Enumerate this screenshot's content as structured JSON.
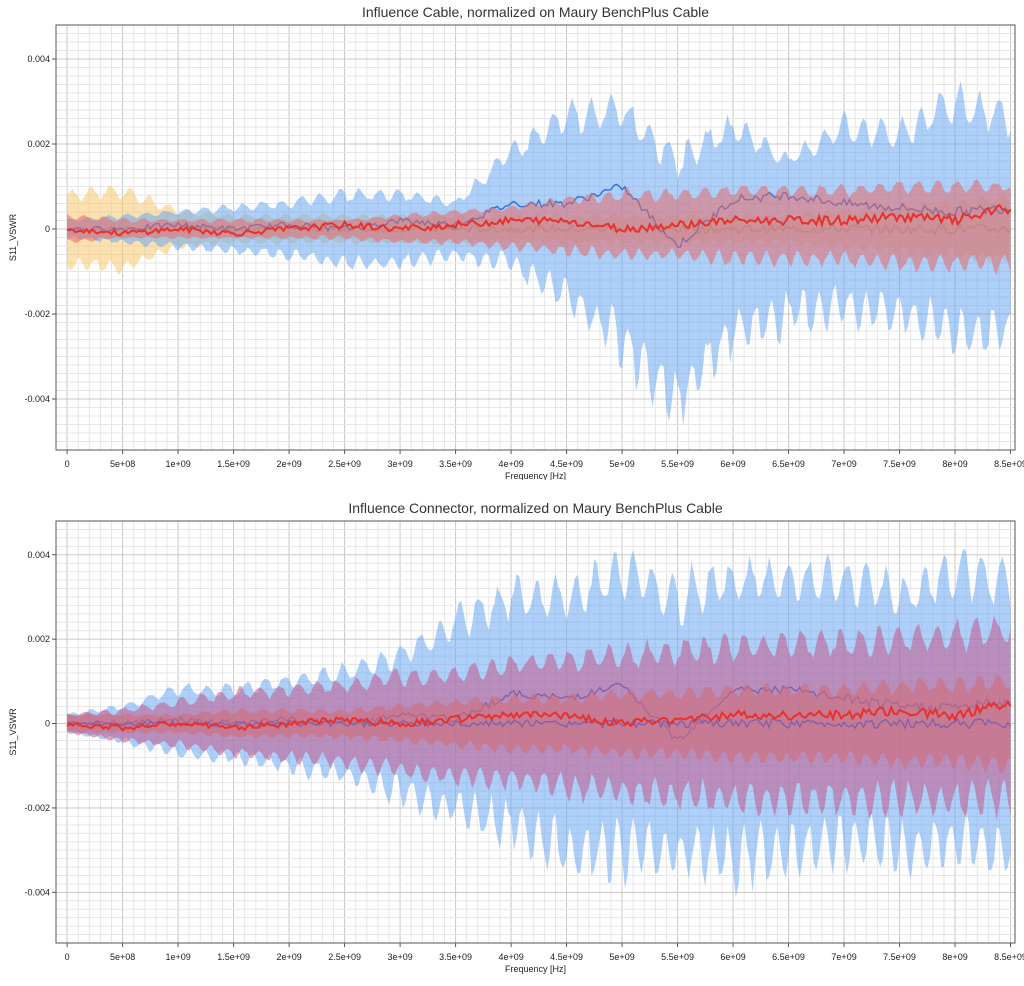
{
  "chart_data": [
    {
      "type": "area",
      "title": "Influence Cable, normalized on Maury BenchPlus Cable",
      "xlabel": "Frequency [Hz]",
      "ylabel": "S11_VSWR",
      "xlim": [
        -100000000.0,
        8500000000.0
      ],
      "ylim": [
        -0.0052,
        0.0048
      ],
      "grid": true,
      "x_ticks": [
        0,
        500000000.0,
        1000000000.0,
        1500000000.0,
        2000000000.0,
        2500000000.0,
        3000000000.0,
        3500000000.0,
        4000000000.0,
        4500000000.0,
        5000000000.0,
        5500000000.0,
        6000000000.0,
        6500000000.0,
        7000000000.0,
        7500000000.0,
        8000000000.0,
        8500000000.0
      ],
      "x_tick_labels": [
        "0",
        "5e+08",
        "1e+09",
        "1.5e+09",
        "2e+09",
        "2.5e+09",
        "3e+09",
        "3.5e+09",
        "4e+09",
        "4.5e+09",
        "5e+09",
        "5.5e+09",
        "6e+09",
        "6.5e+09",
        "7e+09",
        "7.5e+09",
        "8e+09",
        "8.5e+09"
      ],
      "y_ticks": [
        -0.004,
        -0.002,
        0,
        0.002,
        0.004
      ],
      "y_tick_labels": [
        "-0.004",
        "-0.002",
        "0",
        "0.002",
        "0.004"
      ],
      "x": [
        0,
        500000000.0,
        1000000000.0,
        1500000000.0,
        2000000000.0,
        2500000000.0,
        3000000000.0,
        3500000000.0,
        4000000000.0,
        4500000000.0,
        5000000000.0,
        5500000000.0,
        6000000000.0,
        6500000000.0,
        7000000000.0,
        7500000000.0,
        8000000000.0,
        8500000000.0
      ],
      "series": [
        {
          "color": "#f5c86e",
          "band_upper": [
            0.0008,
            0.0009,
            0.0004,
            0.0003,
            0.0003,
            0.0003,
            0.0003,
            0.0003,
            0.0003,
            0.0003,
            0.0003,
            0.0003,
            0.0003,
            0.0003,
            0.0004,
            0.0005,
            0.0006,
            0.0007
          ],
          "band_lower": [
            -0.0008,
            -0.0009,
            -0.0004,
            -0.0003,
            -0.0003,
            -0.0003,
            -0.0003,
            -0.0003,
            -0.0003,
            -0.0003,
            -0.0003,
            -0.0003,
            -0.0003,
            -0.0003,
            -0.0004,
            -0.0005,
            -0.0006,
            -0.0007
          ],
          "values": [
            0,
            0,
            0,
            0,
            0,
            0,
            0,
            0,
            0,
            0,
            0,
            0,
            0,
            0,
            0,
            0,
            0,
            0
          ]
        },
        {
          "color": "#6aa8f2",
          "band_upper": [
            0.0002,
            0.0003,
            0.0004,
            0.0005,
            0.0006,
            0.0008,
            0.0008,
            0.0006,
            0.0018,
            0.0026,
            0.0028,
            0.0016,
            0.0024,
            0.0016,
            0.0024,
            0.0022,
            0.003,
            0.0026
          ],
          "band_lower": [
            -0.0002,
            -0.0003,
            -0.0004,
            -0.0005,
            -0.0006,
            -0.0008,
            -0.0008,
            -0.0006,
            -0.0008,
            -0.0016,
            -0.0026,
            -0.004,
            -0.0024,
            -0.002,
            -0.0018,
            -0.002,
            -0.0024,
            -0.0024
          ],
          "values": [
            0,
            0,
            0.0001,
            0,
            0.0001,
            0,
            0.0002,
            0.0001,
            0.0006,
            0.0006,
            0.001,
            -0.0004,
            0.0007,
            0.0008,
            0.0006,
            0.0005,
            0.0004,
            0.0005
          ]
        },
        {
          "color": "#e86a6a",
          "band_upper": [
            0.0003,
            0.0002,
            0.0002,
            0.0002,
            0.0002,
            0.0002,
            0.0003,
            0.0004,
            0.0005,
            0.0007,
            0.0008,
            0.0008,
            0.0009,
            0.0009,
            0.0009,
            0.001,
            0.001,
            0.001
          ],
          "band_lower": [
            -0.0003,
            -0.0002,
            -0.0002,
            -0.0002,
            -0.0002,
            -0.0002,
            -0.0003,
            -0.0003,
            -0.0004,
            -0.0005,
            -0.0006,
            -0.0006,
            -0.0007,
            -0.0007,
            -0.0007,
            -0.0008,
            -0.0008,
            -0.0008
          ],
          "values": [
            0,
            -0.0001,
            0,
            -0.0001,
            0,
            0.0001,
            0,
            0.0001,
            0.0002,
            0.0002,
            0,
            0.0001,
            0.0002,
            0.0002,
            0.0002,
            0.0003,
            0.0002,
            0.0005
          ]
        }
      ]
    },
    {
      "type": "area",
      "title": "Influence Connector, normalized on Maury BenchPlus Cable",
      "xlabel": "Frequency [Hz]",
      "ylabel": "S11_VSWR",
      "xlim": [
        -100000000.0,
        8500000000.0
      ],
      "ylim": [
        -0.0052,
        0.0048
      ],
      "grid": true,
      "x_ticks": [
        0,
        500000000.0,
        1000000000.0,
        1500000000.0,
        2000000000.0,
        2500000000.0,
        3000000000.0,
        3500000000.0,
        4000000000.0,
        4500000000.0,
        5000000000.0,
        5500000000.0,
        6000000000.0,
        6500000000.0,
        7000000000.0,
        7500000000.0,
        8000000000.0,
        8500000000.0
      ],
      "x_tick_labels": [
        "0",
        "5e+08",
        "1e+09",
        "1.5e+09",
        "2e+09",
        "2.5e+09",
        "3e+09",
        "3.5e+09",
        "4e+09",
        "4.5e+09",
        "5e+09",
        "5.5e+09",
        "6e+09",
        "6.5e+09",
        "7e+09",
        "7.5e+09",
        "8e+09",
        "8.5e+09"
      ],
      "y_ticks": [
        -0.004,
        -0.002,
        0,
        0.002,
        0.004
      ],
      "y_tick_labels": [
        "-0.004",
        "-0.002",
        "0",
        "0.002",
        "0.004"
      ],
      "x": [
        0,
        500000000.0,
        1000000000.0,
        1500000000.0,
        2000000000.0,
        2500000000.0,
        3000000000.0,
        3500000000.0,
        4000000000.0,
        4500000000.0,
        5000000000.0,
        5500000000.0,
        6000000000.0,
        6500000000.0,
        7000000000.0,
        7500000000.0,
        8000000000.0,
        8500000000.0
      ],
      "series": [
        {
          "color": "#6aa8f2",
          "band_upper": [
            0.0002,
            0.0004,
            0.0008,
            0.0008,
            0.001,
            0.0012,
            0.0016,
            0.0024,
            0.003,
            0.003,
            0.0036,
            0.003,
            0.0034,
            0.0034,
            0.0034,
            0.003,
            0.0036,
            0.0034
          ],
          "band_lower": [
            -0.0002,
            -0.0004,
            -0.0007,
            -0.0008,
            -0.001,
            -0.0012,
            -0.0016,
            -0.002,
            -0.0024,
            -0.003,
            -0.003,
            -0.003,
            -0.0032,
            -0.003,
            -0.0028,
            -0.003,
            -0.0028,
            -0.003
          ],
          "values": [
            0,
            0,
            0.0001,
            0,
            0.0001,
            0,
            0.0002,
            0.0001,
            0.0007,
            0.0006,
            0.0009,
            -0.0004,
            0.0008,
            0.0008,
            0.0006,
            0.0004,
            0.0004,
            0.0005
          ]
        },
        {
          "color": "#e8845a",
          "band_upper": [
            0.0002,
            0.0002,
            0.0002,
            0.0003,
            0.0003,
            0.0003,
            0.0004,
            0.0005,
            0.0006,
            0.0006,
            0.0007,
            0.0007,
            0.0008,
            0.0008,
            0.0008,
            0.0009,
            0.0009,
            0.001
          ],
          "band_lower": [
            -0.0002,
            -0.0002,
            -0.0002,
            -0.0003,
            -0.0003,
            -0.0003,
            -0.0004,
            -0.0005,
            -0.0006,
            -0.0006,
            -0.0007,
            -0.0007,
            -0.0008,
            -0.0008,
            -0.0008,
            -0.0009,
            -0.0009,
            -0.001
          ],
          "values": [
            0,
            0,
            0,
            0,
            0,
            0,
            0,
            0,
            0,
            0,
            0,
            0,
            0,
            0,
            0,
            0,
            0,
            0
          ]
        },
        {
          "color": "#c2578a",
          "band_upper": [
            0.0002,
            0.0003,
            0.0005,
            0.0007,
            0.0008,
            0.0009,
            0.0011,
            0.0012,
            0.0014,
            0.0015,
            0.0016,
            0.0017,
            0.0018,
            0.0019,
            0.0019,
            0.002,
            0.0021,
            0.0022
          ],
          "band_lower": [
            -0.0002,
            -0.0004,
            -0.0005,
            -0.0007,
            -0.0008,
            -0.0009,
            -0.0011,
            -0.0012,
            -0.0013,
            -0.0015,
            -0.0016,
            -0.0017,
            -0.0018,
            -0.0018,
            -0.0018,
            -0.0018,
            -0.0018,
            -0.0018
          ],
          "values": [
            0,
            -0.0001,
            0,
            -0.0001,
            0,
            0.0001,
            0,
            0.0001,
            0.0002,
            0.0002,
            0,
            0.0001,
            0.0002,
            0.0002,
            0.0002,
            0.0003,
            0.0002,
            0.0005
          ]
        }
      ]
    }
  ]
}
